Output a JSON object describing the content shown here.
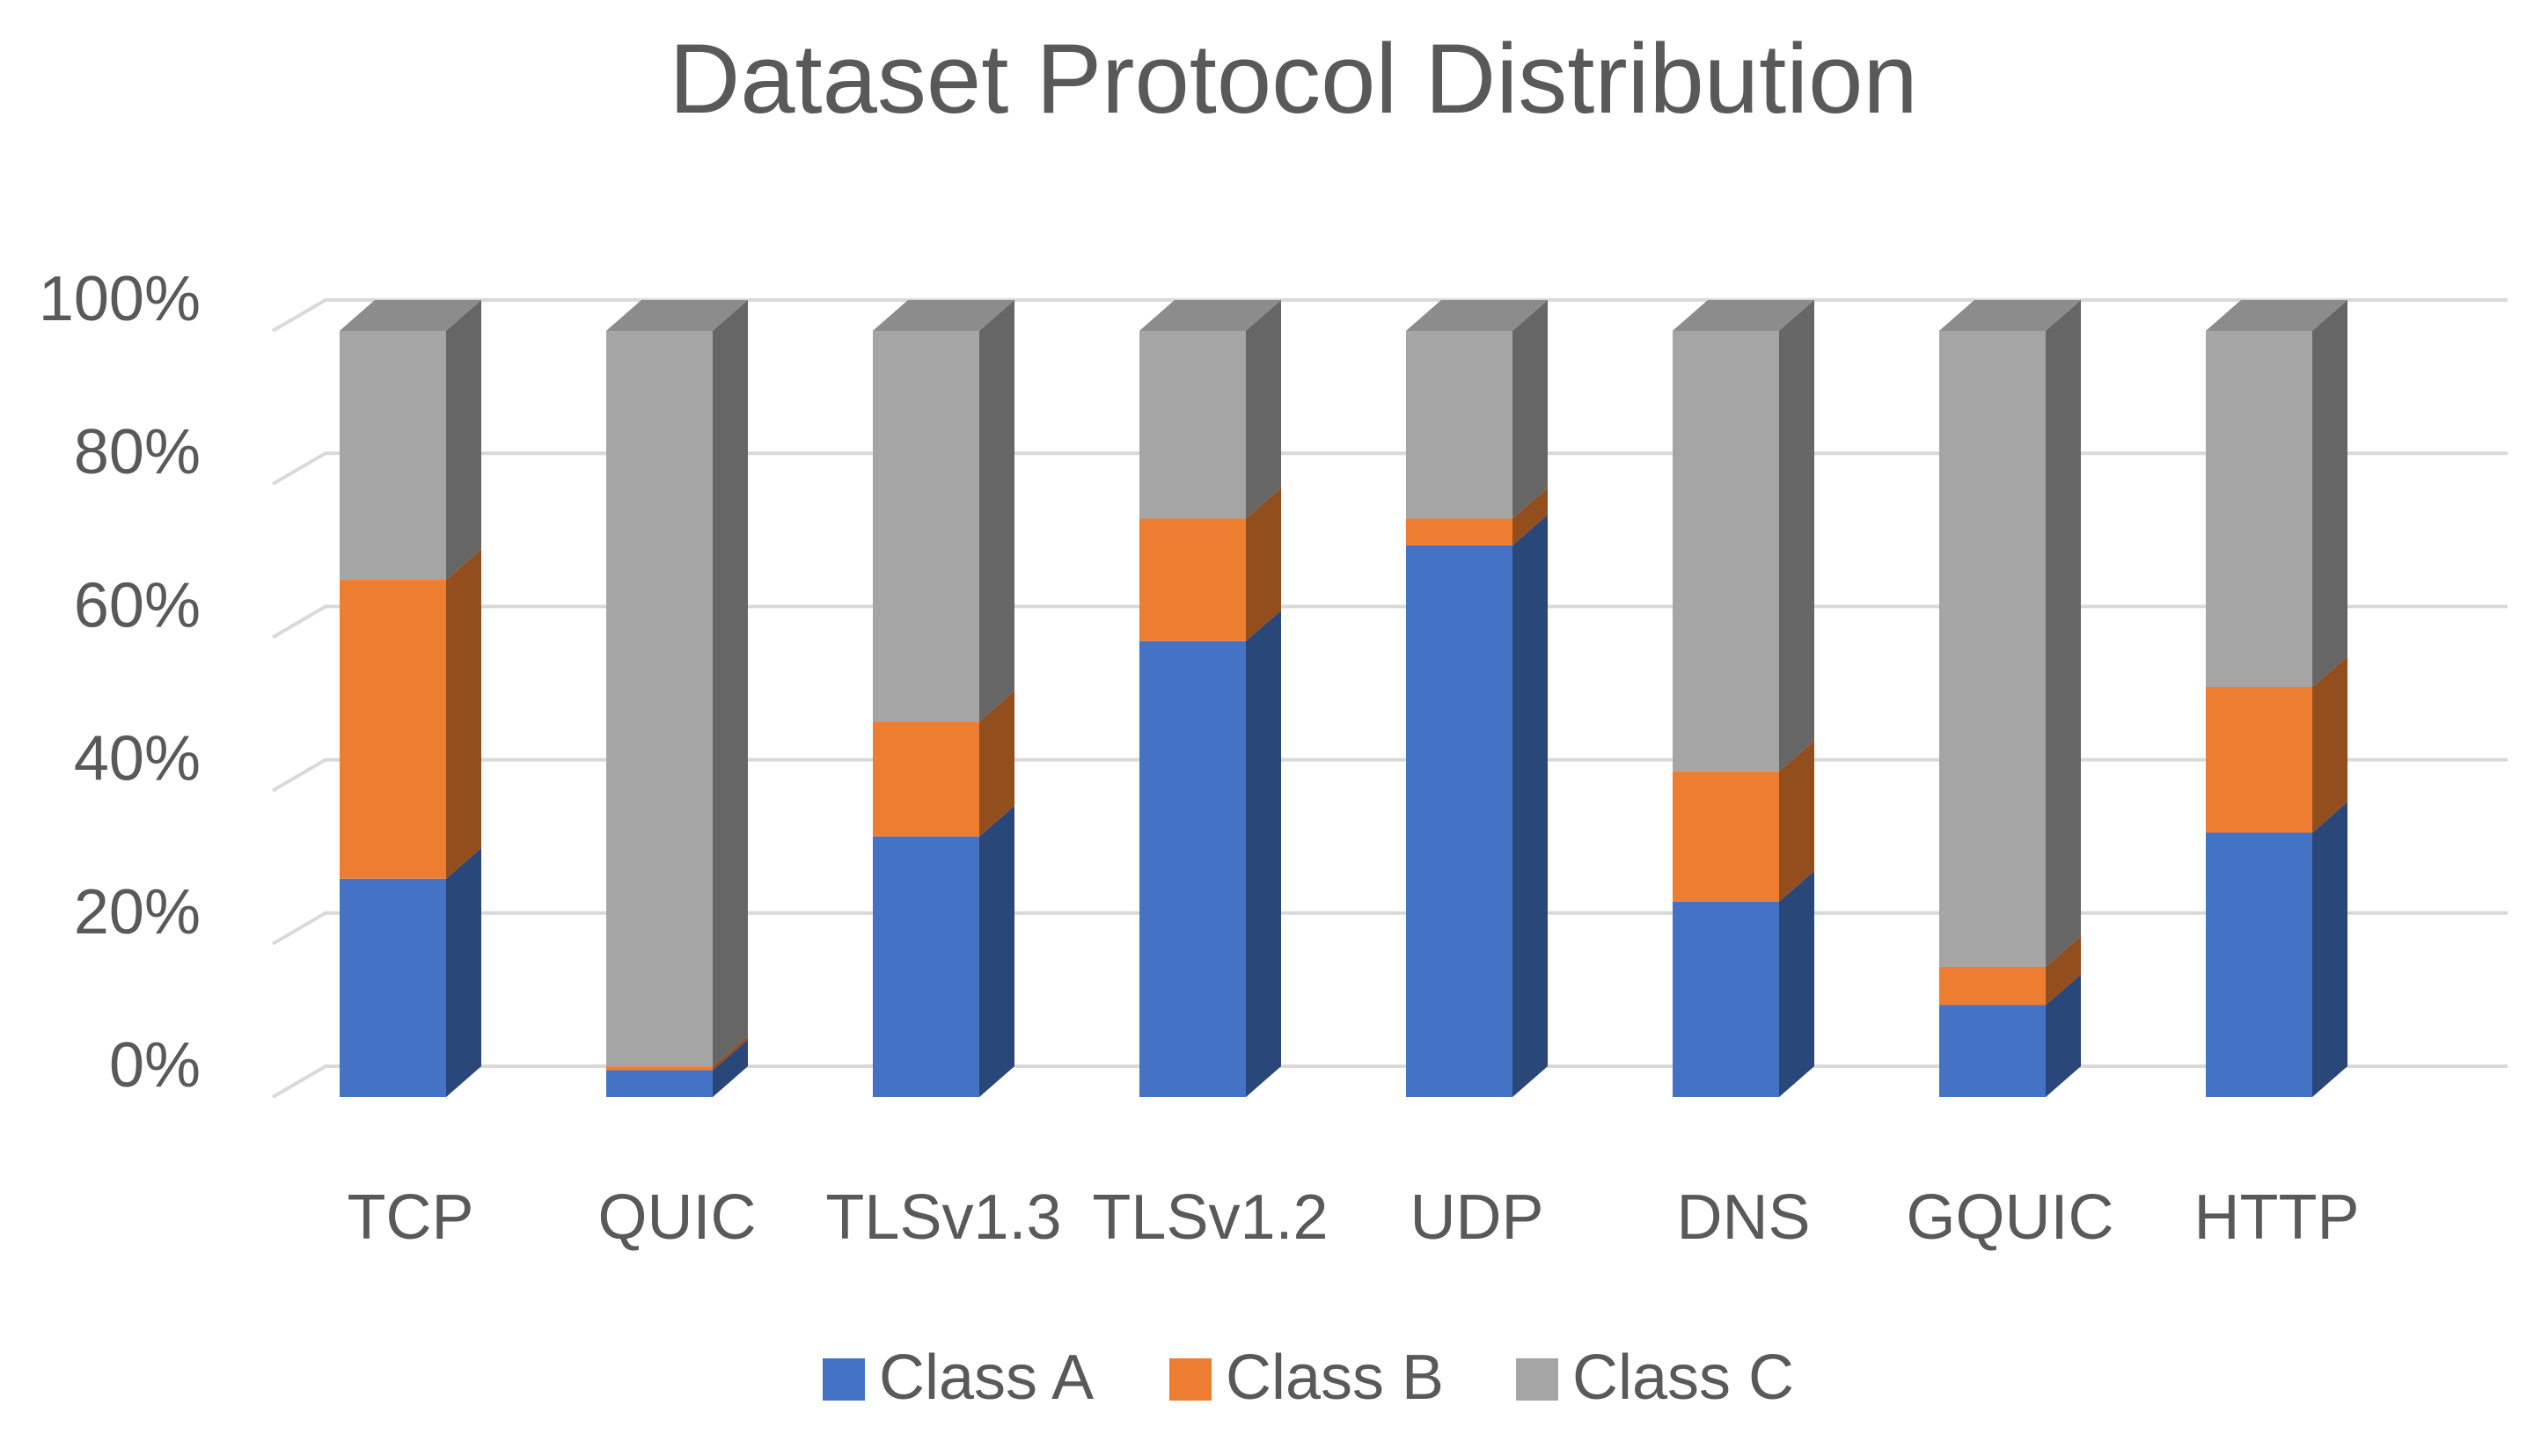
{
  "chart_data": {
    "type": "bar",
    "stacked": "percent",
    "title": "Dataset Protocol Distribution",
    "categories": [
      "TCP",
      "QUIC",
      "TLSv1.3",
      "TLSv1.2",
      "UDP",
      "DNS",
      "GQUIC",
      "HTTP"
    ],
    "series": [
      {
        "name": "Class A",
        "color": "#4472C4",
        "values": [
          28.5,
          3.5,
          34,
          59.5,
          72,
          25.5,
          12,
          34.5
        ]
      },
      {
        "name": "Class B",
        "color": "#ED7D31",
        "values": [
          39,
          0.5,
          15,
          16,
          3.5,
          17,
          5,
          19
        ]
      },
      {
        "name": "Class C",
        "color": "#A5A5A5",
        "values": [
          32.5,
          96,
          51,
          24.5,
          24.5,
          57.5,
          83,
          46.5
        ]
      }
    ],
    "yticks": [
      "0%",
      "20%",
      "40%",
      "60%",
      "80%",
      "100%"
    ],
    "ylim": [
      0,
      100
    ],
    "xlabel": "",
    "ylabel": "",
    "grid": true,
    "legend": "bottom"
  }
}
